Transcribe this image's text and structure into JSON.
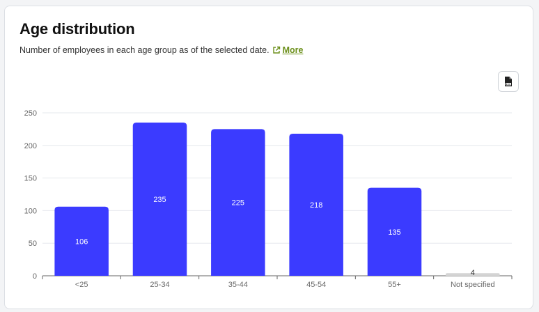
{
  "card": {
    "title": "Age distribution",
    "subtitle": "Number of employees in each age group as of the selected date.",
    "more_label": "More",
    "export_icon": "jpg-file-icon",
    "link_icon": "external-link-icon"
  },
  "colors": {
    "bar": "#3b3bff",
    "bar_small": "#d4d4d4",
    "grid": "#e6e8ee",
    "axis": "#666666",
    "link": "#6b8f1a"
  },
  "chart_data": {
    "type": "bar",
    "categories": [
      "<25",
      "25-34",
      "35-44",
      "45-54",
      "55+",
      "Not specified"
    ],
    "values": [
      106,
      235,
      225,
      218,
      135,
      4
    ],
    "ylim": [
      0,
      250
    ],
    "yticks": [
      0,
      50,
      100,
      150,
      200,
      250
    ],
    "grid": true
  }
}
